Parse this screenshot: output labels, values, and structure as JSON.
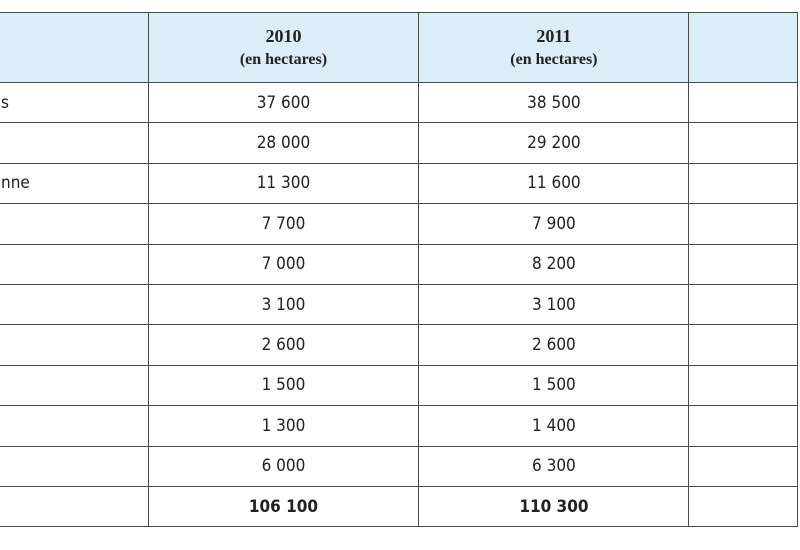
{
  "table": {
    "header": [
      {
        "year": "2010",
        "unit": "(en hectares)"
      },
      {
        "year": "2011",
        "unit": "(en hectares)"
      }
    ],
    "rows": [
      {
        "label": "s",
        "cells": [
          "37 600",
          "38 500"
        ]
      },
      {
        "cells": [
          "28 000",
          "29 200"
        ]
      },
      {
        "label": "nne",
        "cells": [
          "11 300",
          "11 600"
        ]
      },
      {
        "cells": [
          "7 700",
          "7 900"
        ]
      },
      {
        "cells": [
          "7 000",
          "8 200"
        ]
      },
      {
        "cells": [
          "3 100",
          "3 100"
        ]
      },
      {
        "cells": [
          "2 600",
          "2 600"
        ]
      },
      {
        "cells": [
          "1 500",
          "1 500"
        ]
      },
      {
        "cells": [
          "1 300",
          "1 400"
        ]
      },
      {
        "cells": [
          "6 000",
          "6 300"
        ]
      },
      {
        "cells": [
          "106 100",
          "110 300"
        ],
        "bold": true
      }
    ]
  }
}
